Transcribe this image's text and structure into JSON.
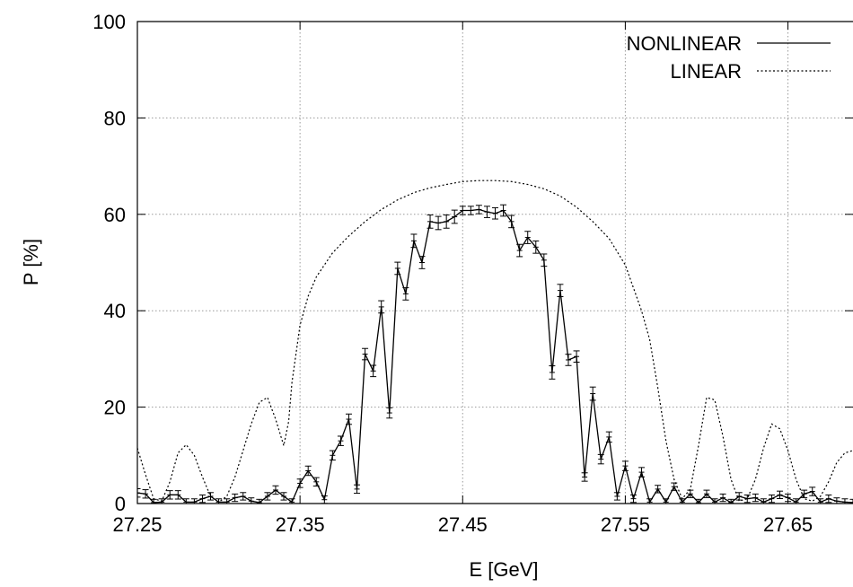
{
  "chart_data": {
    "type": "line",
    "title": "",
    "xlabel": "E [GeV]",
    "ylabel": "P [%]",
    "xlim": [
      27.25,
      27.69
    ],
    "ylim": [
      0,
      100
    ],
    "xticks": [
      27.25,
      27.35,
      27.45,
      27.55,
      27.65
    ],
    "xtick_labels": [
      "27.25",
      "27.35",
      "27.45",
      "27.55",
      "27.65"
    ],
    "yticks": [
      0,
      20,
      40,
      60,
      80,
      100
    ],
    "ytick_labels": [
      "0",
      "20",
      "40",
      "60",
      "80",
      "100"
    ],
    "grid": true,
    "legend_position": "top-right",
    "series": [
      {
        "name": "NONLINEAR",
        "style": "solid",
        "error_bars": true,
        "x": [
          27.25,
          27.255,
          27.26,
          27.265,
          27.27,
          27.275,
          27.28,
          27.285,
          27.29,
          27.295,
          27.3,
          27.305,
          27.31,
          27.315,
          27.32,
          27.325,
          27.33,
          27.335,
          27.34,
          27.345,
          27.35,
          27.355,
          27.36,
          27.365,
          27.37,
          27.375,
          27.38,
          27.385,
          27.39,
          27.395,
          27.4,
          27.405,
          27.41,
          27.415,
          27.42,
          27.425,
          27.43,
          27.435,
          27.44,
          27.445,
          27.45,
          27.455,
          27.46,
          27.465,
          27.47,
          27.475,
          27.48,
          27.485,
          27.49,
          27.495,
          27.5,
          27.505,
          27.51,
          27.515,
          27.52,
          27.525,
          27.53,
          27.535,
          27.54,
          27.545,
          27.55,
          27.555,
          27.56,
          27.565,
          27.57,
          27.575,
          27.58,
          27.585,
          27.59,
          27.595,
          27.6,
          27.605,
          27.61,
          27.615,
          27.62,
          27.625,
          27.63,
          27.635,
          27.64,
          27.645,
          27.65,
          27.655,
          27.66,
          27.665,
          27.67,
          27.675,
          27.68,
          27.685,
          27.69
        ],
        "y": [
          2.2,
          2.0,
          0.2,
          0.3,
          1.8,
          1.8,
          0.3,
          0.3,
          1.0,
          1.5,
          0.3,
          0.3,
          1.2,
          1.5,
          0.5,
          0.2,
          1.5,
          2.8,
          1.5,
          0.3,
          4.2,
          6.8,
          4.5,
          0.8,
          10.0,
          13.0,
          17.5,
          3.0,
          31.0,
          27.5,
          40.8,
          18.8,
          48.8,
          43.5,
          54.5,
          50.0,
          58.5,
          58.2,
          58.5,
          59.5,
          60.8,
          60.8,
          61.0,
          60.5,
          60.2,
          60.8,
          58.5,
          52.5,
          55.2,
          53.2,
          50.5,
          27.2,
          44.2,
          29.8,
          30.5,
          5.5,
          22.8,
          9.2,
          13.8,
          1.5,
          7.8,
          1.0,
          6.5,
          0.3,
          3.0,
          0.3,
          3.5,
          0.3,
          2.0,
          0.2,
          2.0,
          0.3,
          1.2,
          0.2,
          1.5,
          1.0,
          1.2,
          0.3,
          1.0,
          1.8,
          1.2,
          0.3,
          2.0,
          2.5,
          0.3,
          1.0,
          0.5,
          0.3,
          0.2
        ],
        "err": [
          0.5,
          0.5,
          0.3,
          0.3,
          0.5,
          0.5,
          0.3,
          0.3,
          0.4,
          0.4,
          0.3,
          0.3,
          0.4,
          0.4,
          0.3,
          0.3,
          0.4,
          0.5,
          0.4,
          0.3,
          0.5,
          0.6,
          0.5,
          0.4,
          0.6,
          0.6,
          0.7,
          0.5,
          0.8,
          0.8,
          0.9,
          0.7,
          0.9,
          0.9,
          1.0,
          0.9,
          1.0,
          1.0,
          1.0,
          1.0,
          0.5,
          0.5,
          0.5,
          0.8,
          0.8,
          0.8,
          0.9,
          0.9,
          0.9,
          0.9,
          0.9,
          1.0,
          0.9,
          0.8,
          0.8,
          0.5,
          1.0,
          0.6,
          0.7,
          0.4,
          0.6,
          0.4,
          0.6,
          0.3,
          0.4,
          0.3,
          0.4,
          0.3,
          0.4,
          0.3,
          0.4,
          0.3,
          0.4,
          0.3,
          0.4,
          0.4,
          0.4,
          0.3,
          0.4,
          0.4,
          0.4,
          0.3,
          0.4,
          0.5,
          0.3,
          0.4,
          0.3,
          0.3,
          0.3
        ]
      },
      {
        "name": "LINEAR",
        "style": "dotted",
        "error_bars": false,
        "x": [
          27.25,
          27.255,
          27.26,
          27.265,
          27.27,
          27.275,
          27.28,
          27.285,
          27.29,
          27.295,
          27.3,
          27.305,
          27.31,
          27.315,
          27.32,
          27.325,
          27.33,
          27.335,
          27.34,
          27.343,
          27.345,
          27.35,
          27.355,
          27.36,
          27.37,
          27.38,
          27.39,
          27.4,
          27.41,
          27.42,
          27.43,
          27.44,
          27.45,
          27.46,
          27.47,
          27.48,
          27.49,
          27.5,
          27.51,
          27.52,
          27.53,
          27.54,
          27.55,
          27.56,
          27.565,
          27.57,
          27.575,
          27.58,
          27.585,
          27.59,
          27.595,
          27.6,
          27.605,
          27.61,
          27.615,
          27.62,
          27.625,
          27.63,
          27.635,
          27.64,
          27.645,
          27.65,
          27.655,
          27.66,
          27.665,
          27.67,
          27.675,
          27.68,
          27.685,
          27.69
        ],
        "y": [
          11.5,
          6.0,
          1.0,
          0.5,
          4.5,
          10.5,
          12.2,
          10.0,
          5.5,
          1.5,
          0.3,
          1.5,
          5.5,
          11.0,
          16.5,
          21.0,
          22.0,
          17.5,
          12.0,
          17.0,
          25.0,
          37.0,
          43.0,
          47.0,
          52.0,
          55.5,
          58.5,
          61.0,
          63.0,
          64.5,
          65.5,
          66.2,
          66.8,
          67.0,
          67.0,
          66.8,
          66.2,
          65.3,
          63.8,
          61.5,
          58.5,
          55.0,
          49.5,
          40.0,
          34.0,
          24.0,
          13.0,
          5.0,
          1.0,
          3.0,
          12.0,
          22.0,
          21.5,
          14.0,
          5.0,
          0.5,
          1.0,
          5.0,
          11.5,
          16.5,
          15.5,
          11.0,
          5.0,
          1.0,
          0.5,
          1.5,
          4.5,
          8.5,
          10.5,
          11.0
        ]
      }
    ]
  }
}
